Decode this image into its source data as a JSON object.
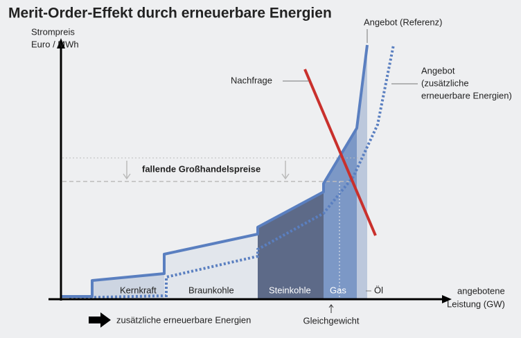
{
  "title": "Merit-Order-Effekt durch erneuerbare Energien",
  "y_axis_label": [
    "Strompreis",
    "Euro / MWh"
  ],
  "x_axis_label": [
    "angebotene",
    "Leistung (GW)"
  ],
  "curves": {
    "supply_reference": "Angebot (Referenz)",
    "supply_renewables": [
      "Angebot",
      "(zusätzliche",
      "erneuerbare Energien)"
    ],
    "demand": "Nachfrage"
  },
  "price_drop": "fallende Großhandelspreise",
  "segments": [
    "Kernkraft",
    "Braunkohle",
    "Steinkohle",
    "Gas",
    "Öl"
  ],
  "equilibrium": "Gleichgewicht",
  "renewables_note": "zusätzliche erneuerbare Energien"
}
